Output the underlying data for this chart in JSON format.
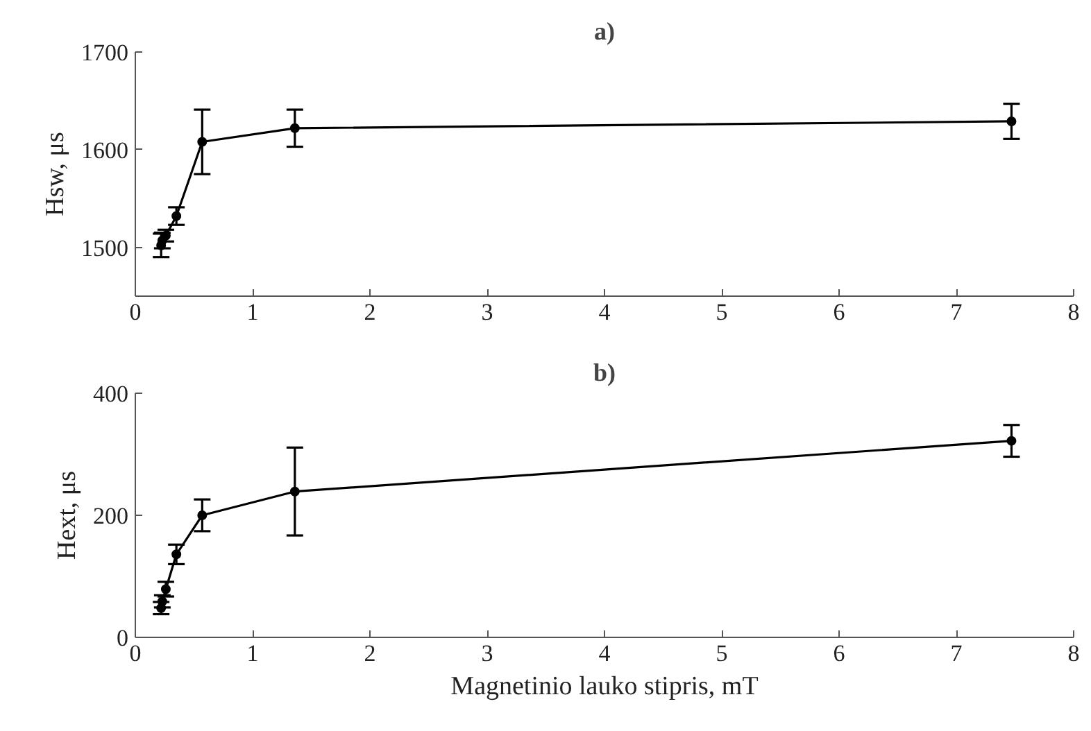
{
  "chart_data": [
    {
      "type": "line",
      "title": "a)",
      "ylabel": "Hsw, μs",
      "x": [
        0.22,
        0.23,
        0.26,
        0.35,
        0.57,
        1.36,
        7.47
      ],
      "series": [
        {
          "color": "#000000",
          "values": [
            1502,
            1507,
            1512,
            1532,
            1608,
            1622,
            1629
          ],
          "errors": [
            12,
            8,
            6,
            9,
            33,
            19,
            18
          ]
        }
      ],
      "xlim": [
        0,
        8
      ],
      "xticks": [
        0,
        1,
        2,
        3,
        4,
        5,
        6,
        7,
        8
      ],
      "ylim": [
        1450,
        1700
      ],
      "yticks": [
        1500,
        1600,
        1700
      ],
      "marker": "circle",
      "grid": false
    },
    {
      "type": "line",
      "title": "b)",
      "xlabel": "Magnetinio lauko stipris, mT",
      "ylabel": "Hext, μs",
      "x": [
        0.22,
        0.23,
        0.26,
        0.35,
        0.57,
        1.36,
        7.47
      ],
      "series": [
        {
          "color": "#000000",
          "values": [
            48,
            59,
            79,
            136,
            200,
            239,
            322
          ],
          "errors": [
            10,
            10,
            12,
            16,
            26,
            72,
            26
          ]
        }
      ],
      "xlim": [
        0,
        8
      ],
      "xticks": [
        0,
        1,
        2,
        3,
        4,
        5,
        6,
        7,
        8
      ],
      "ylim": [
        0,
        400
      ],
      "yticks": [
        0,
        200,
        400
      ],
      "marker": "circle",
      "grid": false
    }
  ]
}
